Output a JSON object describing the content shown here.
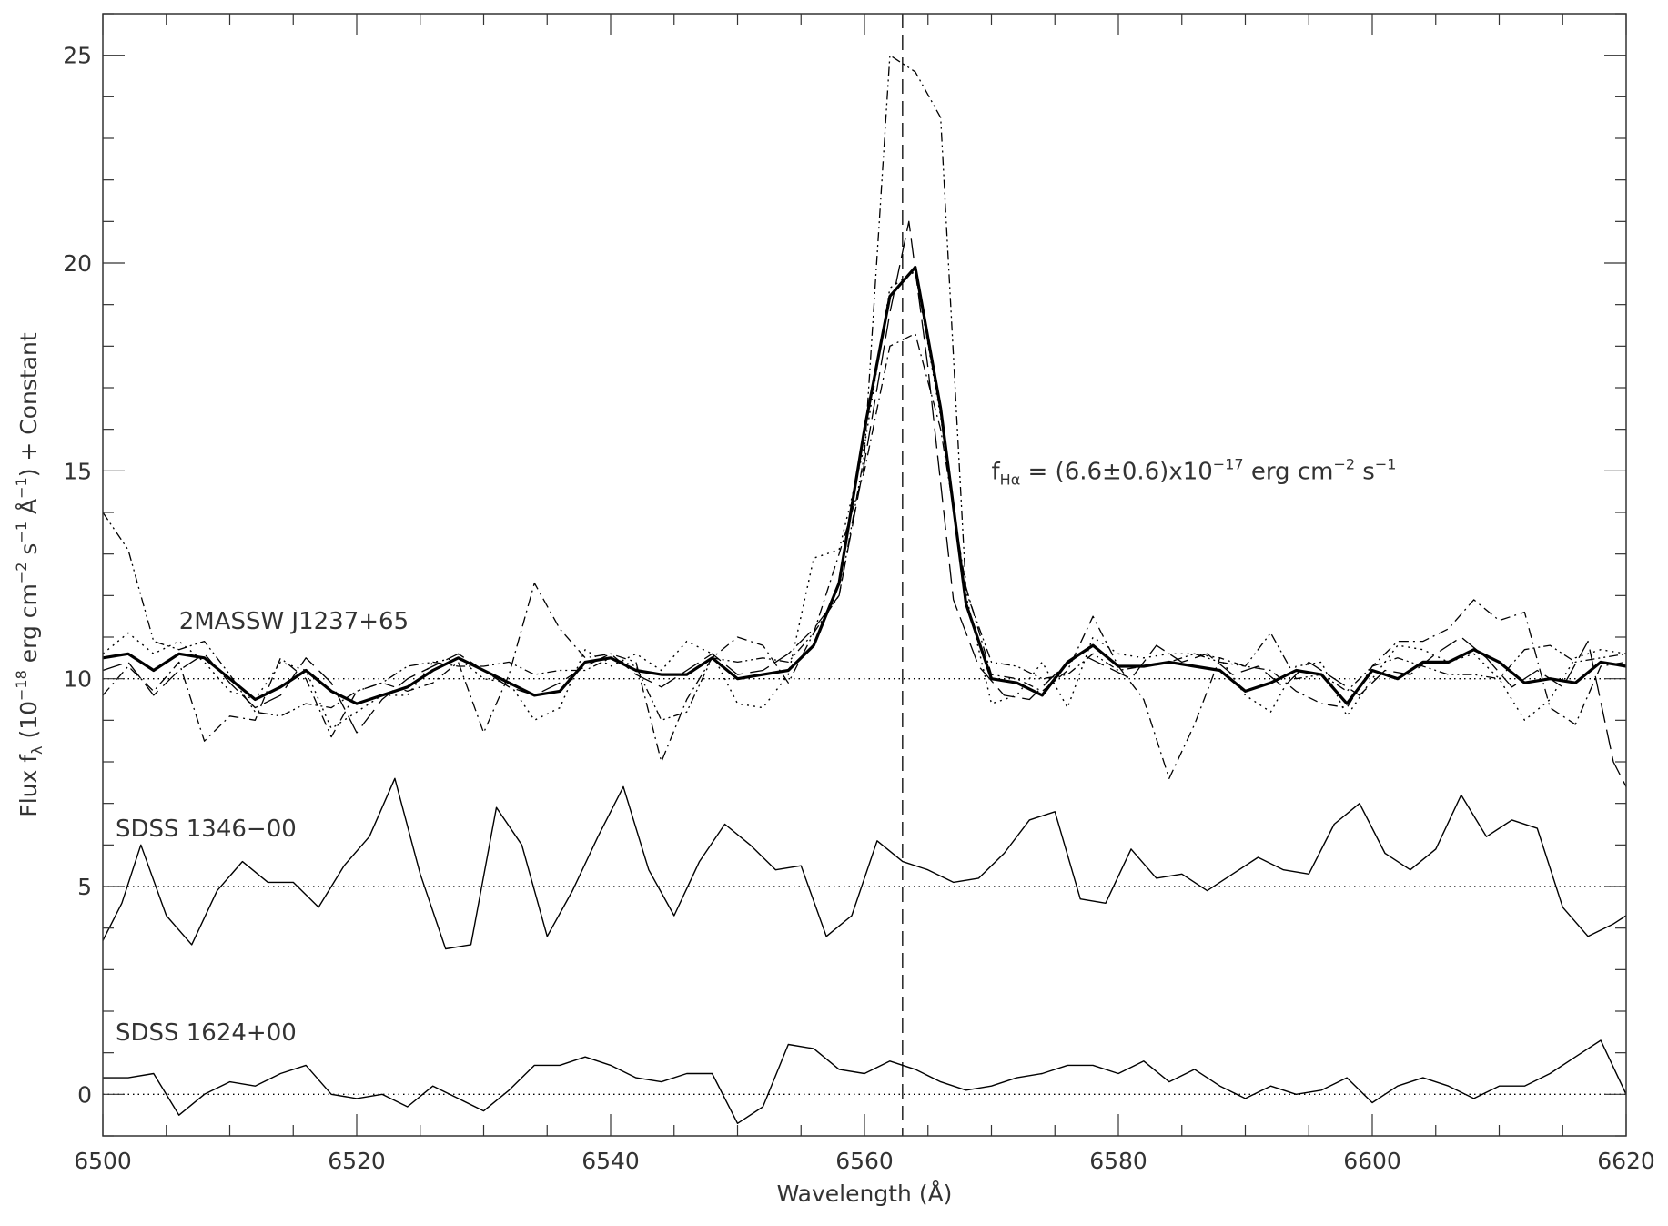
{
  "chart_data": {
    "type": "line",
    "xlabel": "Wavelength (Å)",
    "ylabel": {
      "text": "Flux f",
      "sub": "λ",
      "paren_open": " (10",
      "exp1": "−18",
      "mid1": " erg cm",
      "exp2": "−2",
      "mid2": " s",
      "exp3": "−1",
      "mid3": " Å",
      "exp4": "−1",
      "tail": ") + Constant"
    },
    "xlim": [
      6500,
      6620
    ],
    "ylim": [
      -1,
      26
    ],
    "x_ticks": [
      6500,
      6520,
      6540,
      6560,
      6580,
      6600,
      6620
    ],
    "x_tick_labels": [
      "6500",
      "6520",
      "6540",
      "6560",
      "6580",
      "6600",
      "6620"
    ],
    "y_ticks": [
      0,
      5,
      10,
      15,
      20,
      25
    ],
    "y_tick_labels": [
      "0",
      "5",
      "10",
      "15",
      "20",
      "25"
    ],
    "halpha_line_x": 6563,
    "baselines": [
      10,
      5,
      0
    ],
    "annotation": {
      "text": "f",
      "sub": "Hα",
      "rest": " = (6.6±0.6)x10",
      "exp1": "−17",
      "mid": " erg cm",
      "exp2": "−2",
      "mid2": " s",
      "exp3": "−1",
      "x": 6570,
      "y": 14.8
    },
    "star_labels": [
      {
        "text": "2MASSW J1237+65",
        "x": 6506,
        "y": 11.2
      },
      {
        "text": "SDSS 1346−00",
        "x": 6501,
        "y": 6.2
      },
      {
        "text": "SDSS 1624+00",
        "x": 6501,
        "y": 1.3
      }
    ],
    "series": [
      {
        "style": "thick-solid",
        "x": [
          6500,
          6502,
          6504,
          6506,
          6508,
          6510,
          6512,
          6514,
          6516,
          6518,
          6520,
          6522,
          6524,
          6526,
          6528,
          6530,
          6532,
          6534,
          6536,
          6538,
          6540,
          6542,
          6544,
          6546,
          6548,
          6550,
          6552,
          6554,
          6556,
          6558,
          6560,
          6562,
          6564,
          6566,
          6568,
          6570,
          6572,
          6574,
          6576,
          6578,
          6580,
          6582,
          6584,
          6586,
          6588,
          6590,
          6592,
          6594,
          6596,
          6598,
          6600,
          6602,
          6604,
          6606,
          6608,
          6610,
          6612,
          6614,
          6616,
          6618,
          6620
        ],
        "y": [
          10.5,
          10.6,
          10.2,
          10.6,
          10.5,
          10.0,
          9.5,
          9.8,
          10.2,
          9.7,
          9.4,
          9.6,
          9.8,
          10.2,
          10.5,
          10.2,
          9.9,
          9.6,
          9.7,
          10.4,
          10.5,
          10.2,
          10.1,
          10.1,
          10.5,
          10.0,
          10.1,
          10.2,
          10.8,
          12.3,
          16.0,
          19.2,
          19.9,
          16.5,
          11.8,
          10.0,
          9.9,
          9.6,
          10.4,
          10.8,
          10.3,
          10.3,
          10.4,
          10.3,
          10.2,
          9.7,
          9.9,
          10.2,
          10.1,
          9.4,
          10.2,
          10.0,
          10.4,
          10.4,
          10.7,
          10.4,
          9.9,
          10.0,
          9.9,
          10.4,
          10.3
        ]
      },
      {
        "style": "long-dash",
        "x": [
          6500,
          6502,
          6504,
          6506,
          6508,
          6510,
          6512,
          6514,
          6516,
          6518,
          6520,
          6522,
          6524,
          6526,
          6528,
          6530,
          6532,
          6534,
          6536,
          6538,
          6540,
          6542,
          6544,
          6546,
          6548,
          6550,
          6552,
          6554,
          6556,
          6558,
          6560,
          6562,
          6563.5,
          6565,
          6567,
          6569,
          6571,
          6573,
          6575,
          6577,
          6579,
          6581,
          6583,
          6585,
          6587,
          6589,
          6591,
          6593,
          6595,
          6597,
          6599,
          6601,
          6603,
          6605,
          6607,
          6609,
          6611,
          6613,
          6615,
          6617,
          6619,
          6620
        ],
        "y": [
          10.2,
          10.4,
          9.6,
          10.2,
          10.6,
          9.9,
          9.3,
          9.6,
          10.5,
          9.9,
          8.7,
          9.5,
          10.0,
          10.3,
          10.6,
          10.2,
          9.8,
          9.6,
          9.9,
          10.3,
          10.6,
          10.1,
          9.8,
          10.2,
          10.6,
          10.1,
          10.2,
          10.6,
          11.2,
          12.0,
          15.2,
          18.8,
          21.0,
          17.5,
          11.9,
          10.3,
          9.6,
          9.5,
          10.1,
          10.6,
          10.3,
          10.0,
          10.8,
          10.4,
          10.6,
          10.1,
          10.3,
          9.8,
          10.4,
          10.0,
          9.6,
          10.2,
          10.1,
          10.6,
          11.0,
          10.5,
          9.8,
          10.2,
          9.8,
          10.9,
          8.0,
          7.4
        ]
      },
      {
        "style": "dash-dot",
        "x": [
          6500,
          6502,
          6504,
          6506,
          6508,
          6510,
          6512,
          6514,
          6516,
          6518,
          6520,
          6522,
          6524,
          6526,
          6528,
          6530,
          6532,
          6534,
          6536,
          6538,
          6540,
          6542,
          6544,
          6546,
          6548,
          6550,
          6552,
          6554,
          6556,
          6558,
          6560,
          6562,
          6564,
          6566,
          6568,
          6570,
          6572,
          6574,
          6576,
          6578,
          6580,
          6582,
          6584,
          6586,
          6588,
          6590,
          6592,
          6594,
          6596,
          6598,
          6600,
          6602,
          6604,
          6606,
          6608,
          6610,
          6612,
          6614,
          6616,
          6618,
          6620
        ],
        "y": [
          9.6,
          10.3,
          9.7,
          10.4,
          8.5,
          9.1,
          9.0,
          10.5,
          10.0,
          8.6,
          9.7,
          9.9,
          9.7,
          9.9,
          10.4,
          8.7,
          10.1,
          12.3,
          11.2,
          10.5,
          10.6,
          10.4,
          8.0,
          9.5,
          10.5,
          11.0,
          10.8,
          9.9,
          11.1,
          13.0,
          15.0,
          18.0,
          18.3,
          16.0,
          12.2,
          10.1,
          10.0,
          9.7,
          10.2,
          11.5,
          10.3,
          9.5,
          7.6,
          8.9,
          10.5,
          10.3,
          10.2,
          9.7,
          9.4,
          9.3,
          10.3,
          10.9,
          10.9,
          11.2,
          11.9,
          11.4,
          11.6,
          9.3,
          8.9,
          10.3,
          10.4
        ]
      },
      {
        "style": "dotted",
        "x": [
          6500,
          6502,
          6504,
          6506,
          6508,
          6510,
          6512,
          6514,
          6516,
          6518,
          6520,
          6522,
          6524,
          6526,
          6528,
          6530,
          6532,
          6534,
          6536,
          6538,
          6540,
          6542,
          6544,
          6546,
          6548,
          6550,
          6552,
          6554,
          6556,
          6558,
          6560,
          6562,
          6564,
          6566,
          6568,
          6570,
          6572,
          6574,
          6576,
          6578,
          6580,
          6582,
          6584,
          6586,
          6588,
          6590,
          6592,
          6594,
          6596,
          6598,
          6600,
          6602,
          6604,
          6606,
          6608,
          6610,
          6612,
          6614,
          6616,
          6618,
          6620
        ],
        "y": [
          10.6,
          11.1,
          10.6,
          10.9,
          10.4,
          9.7,
          9.5,
          10.4,
          10.2,
          8.8,
          9.2,
          9.6,
          9.6,
          10.4,
          10.5,
          10.0,
          9.9,
          9.0,
          9.3,
          10.7,
          10.3,
          10.6,
          10.2,
          10.9,
          10.6,
          9.4,
          9.3,
          10.1,
          12.9,
          13.1,
          15.6,
          19.4,
          19.8,
          16.3,
          12.0,
          9.4,
          9.6,
          10.4,
          9.3,
          11.0,
          10.6,
          10.5,
          10.6,
          10.6,
          10.5,
          9.6,
          9.2,
          10.3,
          10.4,
          9.1,
          10.0,
          10.8,
          10.7,
          10.4,
          10.6,
          10.0,
          9.0,
          9.5,
          10.5,
          10.7,
          10.6
        ]
      },
      {
        "style": "dash-dot-dot",
        "x": [
          6500,
          6502,
          6504,
          6506,
          6508,
          6510,
          6512,
          6514,
          6516,
          6518,
          6520,
          6522,
          6524,
          6526,
          6528,
          6530,
          6532,
          6534,
          6536,
          6538,
          6540,
          6542,
          6544,
          6546,
          6548,
          6550,
          6552,
          6554,
          6556,
          6558,
          6560,
          6562,
          6564,
          6566,
          6568,
          6570,
          6572,
          6574,
          6576,
          6578,
          6580,
          6582,
          6584,
          6586,
          6588,
          6590,
          6592,
          6594,
          6596,
          6598,
          6600,
          6602,
          6604,
          6606,
          6608,
          6610,
          6612,
          6614,
          6616,
          6618,
          6620
        ],
        "y": [
          14.0,
          13.1,
          10.9,
          10.7,
          10.9,
          10.1,
          9.2,
          9.1,
          9.4,
          9.3,
          9.7,
          9.9,
          10.3,
          10.4,
          10.3,
          10.3,
          10.4,
          10.1,
          10.2,
          10.2,
          10.5,
          10.3,
          9.0,
          9.2,
          10.5,
          10.4,
          10.5,
          10.4,
          11.1,
          12.0,
          15.4,
          25.0,
          24.6,
          23.5,
          12.1,
          10.4,
          10.3,
          10.0,
          10.1,
          10.6,
          10.2,
          10.3,
          10.4,
          10.6,
          10.4,
          10.3,
          11.1,
          10.0,
          10.1,
          9.7,
          10.3,
          10.5,
          10.3,
          10.1,
          10.1,
          10.0,
          10.7,
          10.8,
          10.4,
          10.5,
          10.6
        ]
      },
      {
        "style": "thin-solid",
        "x": [
          6500,
          6501.5,
          6503,
          6505,
          6507,
          6509,
          6511,
          6513,
          6515,
          6517,
          6519,
          6521,
          6523,
          6525,
          6527,
          6529,
          6531,
          6533,
          6535,
          6537,
          6539,
          6541,
          6543,
          6545,
          6547,
          6549,
          6551,
          6553,
          6555,
          6557,
          6559,
          6561,
          6563,
          6565,
          6567,
          6569,
          6571,
          6573,
          6575,
          6577,
          6579,
          6581,
          6583,
          6585,
          6587,
          6589,
          6591,
          6593,
          6595,
          6597,
          6599,
          6601,
          6603,
          6605,
          6607,
          6609,
          6611,
          6613,
          6615,
          6617,
          6619,
          6620
        ],
        "y": [
          3.7,
          4.6,
          6.0,
          4.3,
          3.6,
          4.9,
          5.6,
          5.1,
          5.1,
          4.5,
          5.5,
          6.2,
          7.6,
          5.3,
          3.5,
          3.6,
          6.9,
          6.0,
          3.8,
          4.9,
          6.2,
          7.4,
          5.4,
          4.3,
          5.6,
          6.5,
          6.0,
          5.4,
          5.5,
          3.8,
          4.3,
          6.1,
          5.6,
          5.4,
          5.1,
          5.2,
          5.8,
          6.6,
          6.8,
          4.7,
          4.6,
          5.9,
          5.2,
          5.3,
          4.9,
          5.3,
          5.7,
          5.4,
          5.3,
          6.5,
          7.0,
          5.8,
          5.4,
          5.9,
          7.2,
          6.2,
          6.6,
          6.4,
          4.5,
          3.8,
          4.1,
          4.3
        ]
      },
      {
        "style": "thin-solid",
        "x": [
          6500,
          6502,
          6504,
          6506,
          6508,
          6510,
          6512,
          6514,
          6516,
          6518,
          6520,
          6522,
          6524,
          6526,
          6528,
          6530,
          6532,
          6534,
          6536,
          6538,
          6540,
          6542,
          6544,
          6546,
          6548,
          6550,
          6552,
          6554,
          6556,
          6558,
          6560,
          6562,
          6564,
          6566,
          6568,
          6570,
          6572,
          6574,
          6576,
          6578,
          6580,
          6582,
          6584,
          6586,
          6588,
          6590,
          6592,
          6594,
          6596,
          6598,
          6600,
          6602,
          6604,
          6606,
          6608,
          6610,
          6612,
          6614,
          6616,
          6618,
          6620
        ],
        "y": [
          0.4,
          0.4,
          0.5,
          -0.5,
          0.0,
          0.3,
          0.2,
          0.5,
          0.7,
          0.0,
          -0.1,
          0.0,
          -0.3,
          0.2,
          -0.1,
          -0.4,
          0.1,
          0.7,
          0.7,
          0.9,
          0.7,
          0.4,
          0.3,
          0.5,
          0.5,
          -0.7,
          -0.3,
          1.2,
          1.1,
          0.6,
          0.5,
          0.8,
          0.6,
          0.3,
          0.1,
          0.2,
          0.4,
          0.5,
          0.7,
          0.7,
          0.5,
          0.8,
          0.3,
          0.6,
          0.2,
          -0.1,
          0.2,
          0.0,
          0.1,
          0.4,
          -0.2,
          0.2,
          0.4,
          0.2,
          -0.1,
          0.2,
          0.2,
          0.5,
          0.9,
          1.3,
          0.0
        ]
      }
    ],
    "colors": {
      "line": "#000000",
      "text": "#333333",
      "frame": "#333333"
    }
  }
}
